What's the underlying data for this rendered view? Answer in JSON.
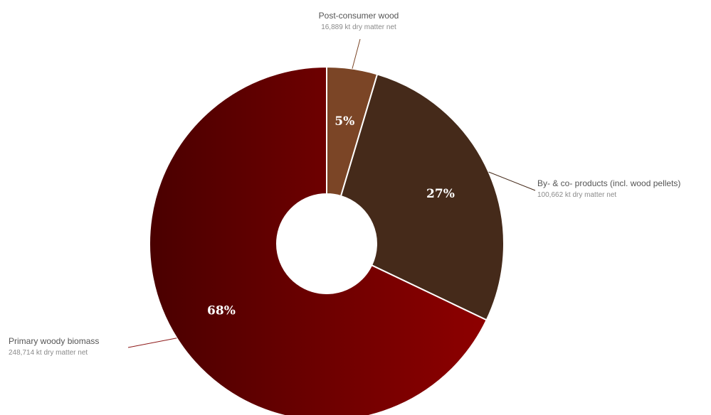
{
  "chart_data": {
    "type": "pie",
    "donut": true,
    "title": "",
    "series": [
      {
        "name": "Post-consumer wood",
        "value": 16889,
        "value_label": "16,889 kt dry matter net",
        "percent_label": "5%",
        "color": "#7B4526"
      },
      {
        "name": "By- & co- products (incl. wood pellets)",
        "value": 100662,
        "value_label": "100,662 kt dry matter net",
        "percent_label": "27%",
        "color": "#452A1A"
      },
      {
        "name": "Primary woody biomass",
        "value": 248714,
        "value_label": "248,714 kt dry matter net",
        "percent_label": "68%",
        "color_start": "#4A0000",
        "color_end": "#8E0000"
      }
    ],
    "legend": "none"
  }
}
